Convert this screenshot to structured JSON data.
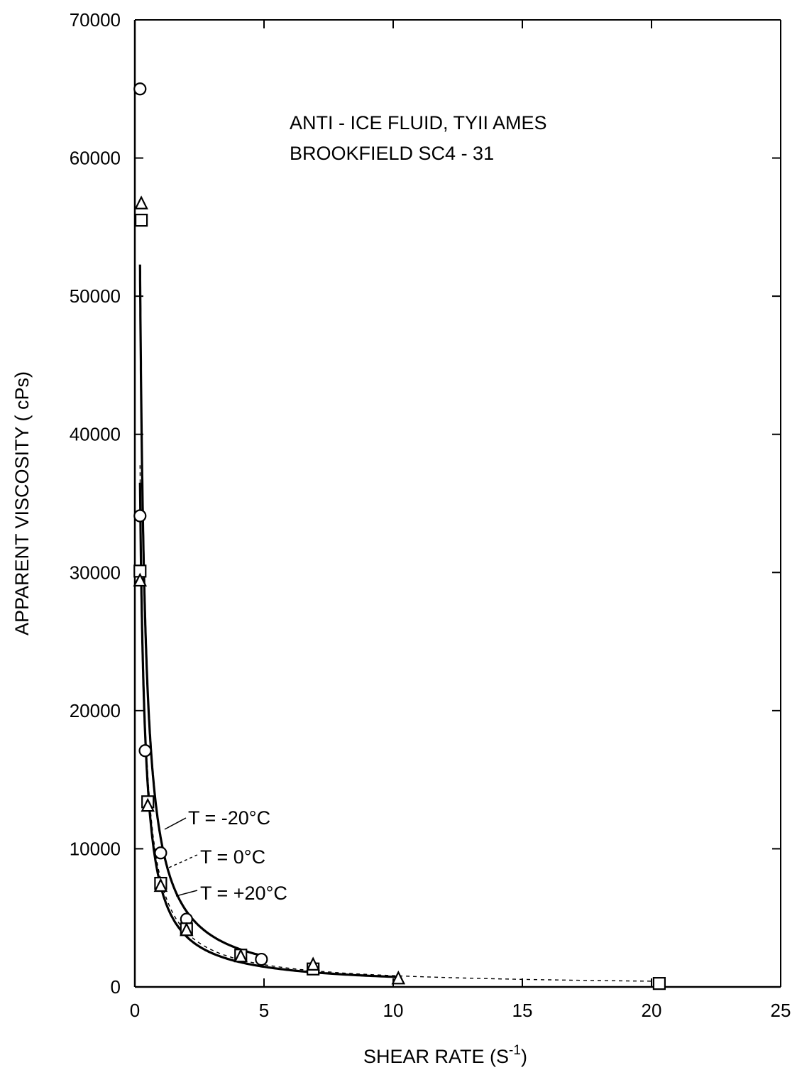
{
  "chart_data": {
    "type": "line",
    "title": "",
    "annotation_lines": [
      "ANTI - ICE FLUID, TYII AMES",
      "BROOKFIELD SC4 - 31"
    ],
    "xlabel": "SHEAR RATE (S",
    "xlabel_sup": "-1",
    "xlabel_tail": ")",
    "ylabel": "APPARENT VISCOSITY ( cPs)",
    "xlim": [
      0,
      25
    ],
    "ylim": [
      0,
      70000
    ],
    "xticks": [
      0,
      5,
      10,
      15,
      20,
      25
    ],
    "yticks": [
      0,
      10000,
      20000,
      30000,
      40000,
      50000,
      60000,
      70000
    ],
    "grid": false,
    "series": [
      {
        "name": "T = -20°C",
        "marker": "circle",
        "line_style": "solid",
        "x": [
          0.2,
          0.2,
          0.4,
          1.0,
          2.0,
          4.9
        ],
        "y": [
          65000,
          34100,
          17100,
          9700,
          4900,
          2000
        ]
      },
      {
        "name": "T = 0°C",
        "marker": "square",
        "line_style": "dashed",
        "x": [
          0.25,
          0.2,
          0.5,
          1.0,
          2.0,
          4.1,
          6.9,
          20.3
        ],
        "y": [
          55500,
          30100,
          13400,
          7500,
          4200,
          2300,
          1300,
          250
        ]
      },
      {
        "name": "T = +20°C",
        "marker": "triangle",
        "line_style": "solid",
        "x": [
          0.25,
          0.2,
          0.5,
          1.0,
          2.0,
          4.1,
          6.9,
          10.2
        ],
        "y": [
          56700,
          29400,
          13100,
          7300,
          4100,
          2200,
          1600,
          600
        ]
      }
    ]
  }
}
